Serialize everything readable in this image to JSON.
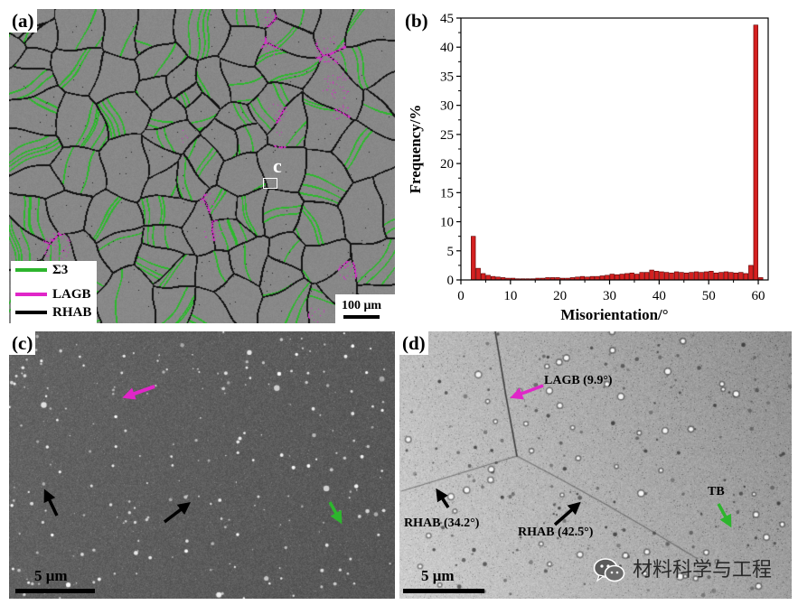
{
  "panel_a": {
    "label": "(a)",
    "inset_label": "c",
    "legend": [
      {
        "name": "Σ3",
        "color": "#2db52d"
      },
      {
        "name": "LAGB",
        "color": "#e026c8"
      },
      {
        "name": "RHAB",
        "color": "#000000"
      }
    ],
    "scale_bar": "100 μm"
  },
  "panel_b": {
    "label": "(b)"
  },
  "panel_c": {
    "label": "(c)",
    "scale_bar": "5 μm"
  },
  "panel_d": {
    "label": "(d)",
    "scale_bar": "5 μm",
    "annotations": [
      {
        "text": "LAGB (9.9°)",
        "color": "#e026c8"
      },
      {
        "text": "RHAB (34.2°)",
        "color": "#000000"
      },
      {
        "text": "RHAB (42.5°)",
        "color": "#000000"
      },
      {
        "text": "TB",
        "color": "#2db52d"
      }
    ]
  },
  "watermark": {
    "text": "材料科学与工程",
    "icon": "wechat-icon"
  },
  "chart_data": {
    "type": "bar",
    "x": [
      2.5,
      3.5,
      4.5,
      5.5,
      6.5,
      7.5,
      8.5,
      9.5,
      10.5,
      11.5,
      12.5,
      13.5,
      14.5,
      15.5,
      16.5,
      17.5,
      18.5,
      19.5,
      20.5,
      21.5,
      22.5,
      23.5,
      24.5,
      25.5,
      26.5,
      27.5,
      28.5,
      29.5,
      30.5,
      31.5,
      32.5,
      33.5,
      34.5,
      35.5,
      36.5,
      37.5,
      38.5,
      39.5,
      40.5,
      41.5,
      42.5,
      43.5,
      44.5,
      45.5,
      46.5,
      47.5,
      48.5,
      49.5,
      50.5,
      51.5,
      52.5,
      53.5,
      54.5,
      55.5,
      56.5,
      57.5,
      58.5,
      59.5,
      60.5
    ],
    "values": [
      7.5,
      2.0,
      1.1,
      0.8,
      0.6,
      0.5,
      0.4,
      0.3,
      0.3,
      0.2,
      0.2,
      0.2,
      0.2,
      0.3,
      0.3,
      0.4,
      0.4,
      0.4,
      0.3,
      0.3,
      0.4,
      0.5,
      0.6,
      0.5,
      0.6,
      0.6,
      0.7,
      0.8,
      1.0,
      0.9,
      1.0,
      1.1,
      1.2,
      1.0,
      1.3,
      1.3,
      1.7,
      1.5,
      1.4,
      1.3,
      1.2,
      1.4,
      1.3,
      1.2,
      1.3,
      1.4,
      1.3,
      1.4,
      1.5,
      1.2,
      1.3,
      1.4,
      1.3,
      1.2,
      1.3,
      1.1,
      2.5,
      43.8,
      0.4
    ],
    "xlabel": "Misorientation/°",
    "ylabel": "Frequency/%",
    "xlim": [
      0,
      62
    ],
    "ylim": [
      0,
      45
    ],
    "xticks": [
      0,
      10,
      20,
      30,
      40,
      50,
      60
    ],
    "yticks": [
      0,
      5,
      10,
      15,
      20,
      25,
      30,
      35,
      40,
      45
    ],
    "bar_color": "#d42020",
    "grid": false
  }
}
